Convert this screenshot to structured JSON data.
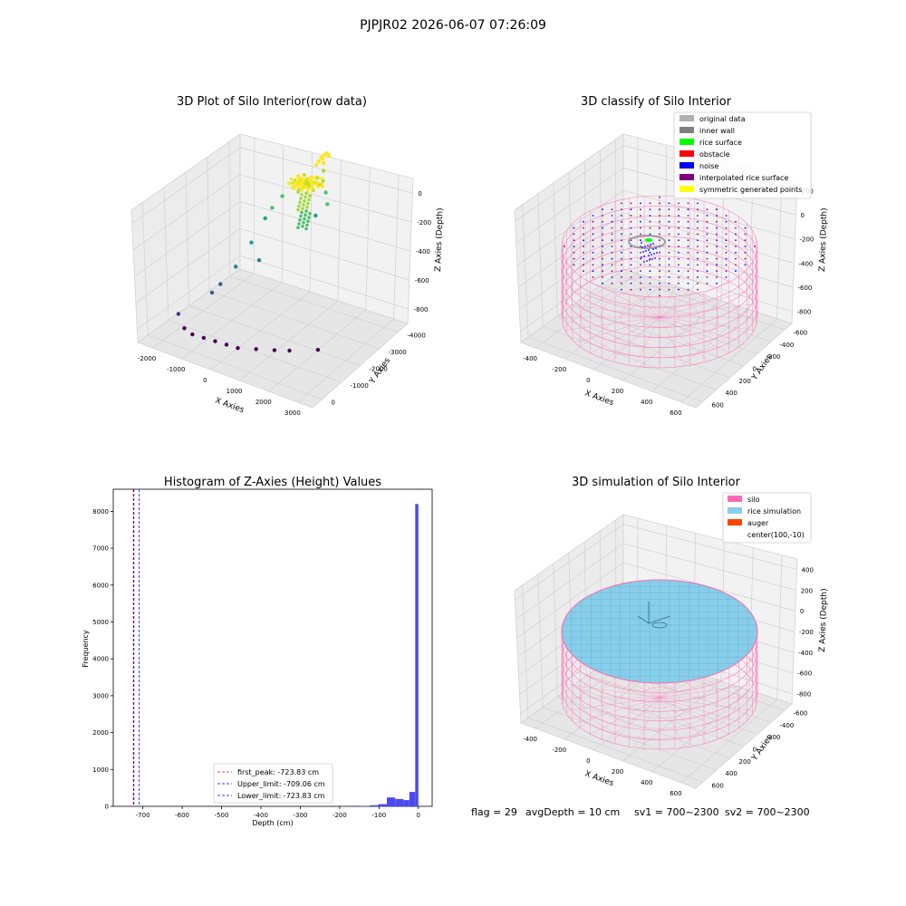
{
  "figure_title": "PJPJR02 2026-06-07 07:26:09",
  "footer": {
    "flag": "flag = 29",
    "avg_depth": "avgDepth = 10 cm",
    "sv1": "sv1 = 700~2300",
    "sv2": "sv2 = 700~2300"
  },
  "colors": {
    "original_data": "#b0b0b0",
    "inner_wall": "#808080",
    "rice_surface": "#00ff00",
    "obstacle": "#ff0000",
    "noise": "#0000ff",
    "interpolated_rice_surface": "#800080",
    "symmetric_generated_points": "#ffff00",
    "silo": "#ff69b4",
    "rice_simulation": "#87ceeb",
    "auger": "#ff4500",
    "hist_bar": "#4a4af0"
  },
  "chart_data": [
    {
      "type": "scatter",
      "title": "3D Plot of Silo Interior(row data)",
      "xlabel": "X Axies",
      "ylabel": "Y Axies",
      "zlabel": "Z Axies (Depth)",
      "x_ticks": [
        "-2000",
        "-1000",
        "0",
        "1000",
        "2000",
        "3000"
      ],
      "y_ticks": [
        "0",
        "-1000",
        "-2000",
        "-3000",
        "-4000"
      ],
      "z_ticks": [
        "0",
        "-200",
        "-400",
        "-600",
        "-800"
      ],
      "colormap": "viridis",
      "points": [
        {
          "x": -2200,
          "y": -3200,
          "z": -820
        },
        {
          "x": -1800,
          "y": -3600,
          "z": -860
        },
        {
          "x": -1500,
          "y": -3700,
          "z": -880
        },
        {
          "x": -1100,
          "y": -3800,
          "z": -880
        },
        {
          "x": -700,
          "y": -3900,
          "z": -880
        },
        {
          "x": -300,
          "y": -4000,
          "z": -880
        },
        {
          "x": 100,
          "y": -4100,
          "z": -880
        },
        {
          "x": 600,
          "y": -4000,
          "z": -880
        },
        {
          "x": 1100,
          "y": -3900,
          "z": -880
        },
        {
          "x": 1500,
          "y": -3800,
          "z": -880
        },
        {
          "x": 2200,
          "y": -3500,
          "z": -880
        },
        {
          "x": -1400,
          "y": -2800,
          "z": -700
        },
        {
          "x": -1200,
          "y": -2700,
          "z": -650
        },
        {
          "x": -900,
          "y": -2400,
          "z": -560
        },
        {
          "x": -300,
          "y": -2200,
          "z": -520
        },
        {
          "x": -700,
          "y": -1900,
          "z": -450
        },
        {
          "x": -500,
          "y": -1500,
          "z": -330
        },
        {
          "x": -400,
          "y": -1300,
          "z": -280
        },
        {
          "x": -200,
          "y": -1100,
          "z": -220
        },
        {
          "x": 200,
          "y": -900,
          "z": -150
        },
        {
          "x": 500,
          "y": -500,
          "z": -60
        },
        {
          "x": 550,
          "y": -450,
          "z": -40
        },
        {
          "x": 600,
          "y": -400,
          "z": -20
        },
        {
          "x": 650,
          "y": -350,
          "z": -10
        },
        {
          "x": 700,
          "y": -300,
          "z": 0
        },
        {
          "x": 750,
          "y": -320,
          "z": -5
        },
        {
          "x": 800,
          "y": -350,
          "z": -8
        },
        {
          "x": 620,
          "y": -380,
          "z": -30
        },
        {
          "x": 680,
          "y": -420,
          "z": -50
        },
        {
          "x": 720,
          "y": -500,
          "z": -90
        },
        {
          "x": 760,
          "y": -600,
          "z": -140
        },
        {
          "x": 900,
          "y": -700,
          "z": -200
        },
        {
          "x": 1000,
          "y": -800,
          "z": -260
        },
        {
          "x": 700,
          "y": -900,
          "z": -330
        }
      ]
    },
    {
      "type": "scatter",
      "title": "3D classify of Silo Interior",
      "xlabel": "X Axies",
      "ylabel": "Y Axies",
      "zlabel": "Z Axies (Depth)",
      "x_ticks": [
        "-400",
        "-200",
        "0",
        "200",
        "400",
        "600"
      ],
      "y_ticks": [
        "600",
        "400",
        "200",
        "0",
        "-200",
        "-400",
        "-600"
      ],
      "z_ticks": [
        "200",
        "0",
        "-200",
        "-400",
        "-600",
        "-800"
      ],
      "legend": [
        "original data",
        "inner wall",
        "rice surface",
        "obstacle",
        "noise",
        "interpolated rice surface",
        "symmetric generated points"
      ],
      "legend_position": "upper-right"
    },
    {
      "type": "bar",
      "title": "Histogram of Z-Axies (Height) Values",
      "xlabel": "Depth (cm)",
      "ylabel": "Frequency",
      "x_ticks": [
        -700,
        -600,
        -500,
        -400,
        -300,
        -200,
        -100,
        0
      ],
      "y_ticks": [
        0,
        1000,
        2000,
        3000,
        4000,
        5000,
        6000,
        7000,
        8000
      ],
      "xlim": [
        -775,
        35
      ],
      "ylim": [
        0,
        8600
      ],
      "bins": [
        {
          "x0": -145,
          "x1": -123,
          "value": 12
        },
        {
          "x0": -123,
          "x1": -102,
          "value": 30
        },
        {
          "x0": -102,
          "x1": -80,
          "value": 60
        },
        {
          "x0": -80,
          "x1": -59,
          "value": 240
        },
        {
          "x0": -59,
          "x1": -38,
          "value": 200
        },
        {
          "x0": -38,
          "x1": -23,
          "value": 170
        },
        {
          "x0": -23,
          "x1": -8,
          "value": 390
        },
        {
          "x0": -8,
          "x1": 0,
          "value": 8200
        }
      ],
      "vlines": [
        {
          "label": "first_peak: -723.83 cm",
          "x": -723.83,
          "color": "#ff0000",
          "style": "dashed"
        },
        {
          "label": "Upper_limit: -709.06 cm",
          "x": -709.06,
          "color": "#0000ff",
          "style": "dashed"
        },
        {
          "label": "Lower_limit: -723.83 cm",
          "x": -723.83,
          "color": "#0000ff",
          "style": "dashed"
        }
      ],
      "legend_position": "lower-center"
    },
    {
      "type": "scatter",
      "title": "3D simulation of Silo Interior",
      "xlabel": "X Axies",
      "ylabel": "Y Axies",
      "zlabel": "Z Axies (Depth)",
      "x_ticks": [
        "-400",
        "-200",
        "0",
        "200",
        "400",
        "600"
      ],
      "y_ticks": [
        "600",
        "400",
        "200",
        "0",
        "-200",
        "-400",
        "-600"
      ],
      "z_ticks": [
        "400",
        "200",
        "0",
        "-200",
        "-400",
        "-600",
        "-800"
      ],
      "legend": [
        "silo",
        "rice simulation",
        "auger",
        "center(100,-10)"
      ],
      "legend_position": "upper-right"
    }
  ]
}
